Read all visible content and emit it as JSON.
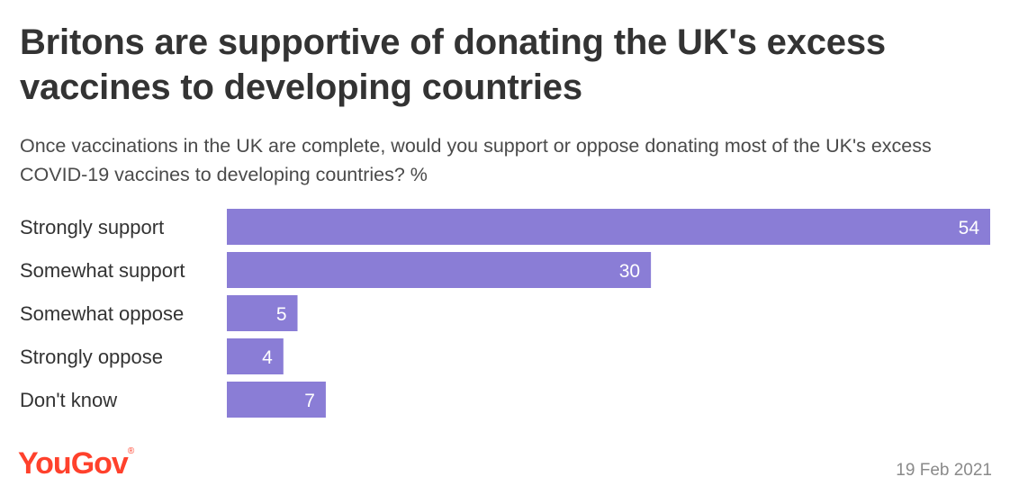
{
  "title": "Britons are supportive of donating the UK's excess vaccines to developing countries",
  "subtitle": "Once vaccinations in the UK are complete, would you support or oppose donating most of the UK's excess COVID-19 vaccines to developing countries? %",
  "footer": {
    "logo_text": "YouGov",
    "date": "19 Feb 2021"
  },
  "colors": {
    "bar": "#8a7dd6",
    "logo": "#ff412c"
  },
  "chart_data": {
    "type": "bar",
    "orientation": "horizontal",
    "categories": [
      "Strongly support",
      "Somewhat support",
      "Somewhat oppose",
      "Strongly oppose",
      "Don't know"
    ],
    "values": [
      54,
      30,
      5,
      4,
      7
    ],
    "xlim": [
      0,
      54
    ],
    "grid": false,
    "legend": "none"
  }
}
